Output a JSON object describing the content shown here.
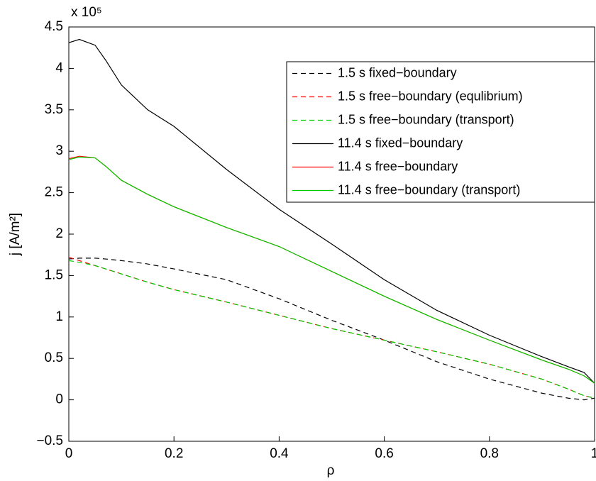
{
  "chart_data": {
    "type": "line",
    "xlabel": "ρ",
    "ylabel": "j [A/m²]",
    "y_multiplier": "x 10⁵",
    "xlim": [
      0,
      1
    ],
    "xticks": [
      0,
      0.2,
      0.4,
      0.6,
      0.8,
      1
    ],
    "ylim": [
      -0.5,
      4.5
    ],
    "yticks": [
      {
        "value": -0.5,
        "label": "−0.5"
      },
      0,
      0.5,
      1,
      1.5,
      2,
      2.5,
      3,
      3.5,
      4,
      4.5
    ],
    "x": [
      0,
      0.02,
      0.05,
      0.07,
      0.1,
      0.15,
      0.2,
      0.3,
      0.4,
      0.5,
      0.6,
      0.7,
      0.8,
      0.9,
      0.95,
      0.98,
      1
    ],
    "legend": "upper right",
    "series": [
      {
        "name": "1.5 s fixed−boundary",
        "color": "#000000",
        "dashed": true,
        "values": [
          1.7,
          1.71,
          1.71,
          1.7,
          1.68,
          1.64,
          1.58,
          1.45,
          1.22,
          0.96,
          0.72,
          0.46,
          0.25,
          0.08,
          0.02,
          0.0,
          0.02
        ]
      },
      {
        "name": "1.5 s free−boundary (equlibrium)",
        "color": "#ff0000",
        "dashed": true,
        "values": [
          1.72,
          1.68,
          1.62,
          1.58,
          1.52,
          1.42,
          1.33,
          1.18,
          1.02,
          0.86,
          0.72,
          0.58,
          0.43,
          0.25,
          0.13,
          0.05,
          0.02
        ]
      },
      {
        "name": "1.5 s free−boundary (transport)",
        "color": "#00cc00",
        "dashed": true,
        "values": [
          1.68,
          1.66,
          1.62,
          1.58,
          1.52,
          1.42,
          1.33,
          1.18,
          1.02,
          0.86,
          0.72,
          0.58,
          0.43,
          0.25,
          0.13,
          0.05,
          0.02
        ]
      },
      {
        "name": "11.4 s fixed−boundary",
        "color": "#000000",
        "dashed": false,
        "values": [
          4.31,
          4.35,
          4.28,
          4.1,
          3.8,
          3.5,
          3.3,
          2.78,
          2.3,
          1.88,
          1.45,
          1.08,
          0.78,
          0.52,
          0.4,
          0.33,
          0.2
        ]
      },
      {
        "name": "11.4 s free−boundary",
        "color": "#ff0000",
        "dashed": false,
        "values": [
          2.91,
          2.94,
          2.92,
          2.82,
          2.65,
          2.48,
          2.33,
          2.08,
          1.85,
          1.55,
          1.25,
          0.97,
          0.72,
          0.48,
          0.37,
          0.29,
          0.2
        ]
      },
      {
        "name": "11.4 s free−boundary (transport)",
        "color": "#00cc00",
        "dashed": false,
        "values": [
          2.9,
          2.93,
          2.92,
          2.82,
          2.65,
          2.48,
          2.33,
          2.08,
          1.85,
          1.55,
          1.25,
          0.97,
          0.72,
          0.48,
          0.37,
          0.29,
          0.2
        ]
      }
    ]
  }
}
